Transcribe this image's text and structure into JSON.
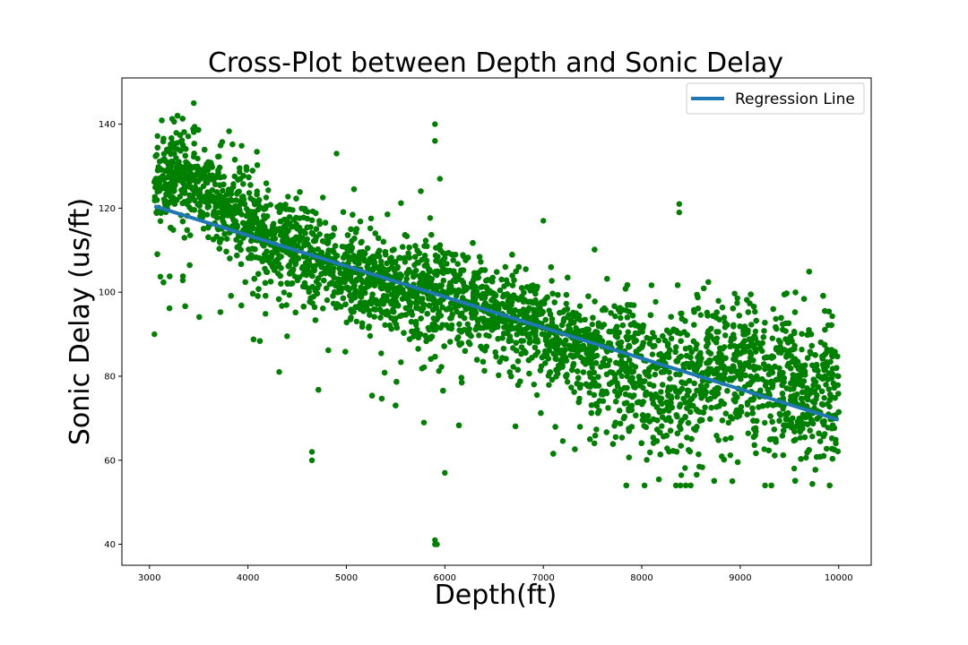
{
  "chart_data": {
    "type": "scatter",
    "title": "Cross-Plot between Depth and Sonic Delay",
    "xlabel": "Depth(ft)",
    "ylabel": "Sonic Delay (us/ft)",
    "xlim": [
      2720,
      10330
    ],
    "ylim": [
      35,
      151
    ],
    "x_ticks": [
      3000,
      4000,
      5000,
      6000,
      7000,
      8000,
      9000,
      10000
    ],
    "y_ticks": [
      40,
      60,
      80,
      100,
      120,
      140
    ],
    "grid": false,
    "legend": {
      "placement": "top-right",
      "entries": [
        "Regression Line"
      ]
    },
    "colors": {
      "scatter": "#008000",
      "regression": "#1f77b4"
    },
    "trend": [
      {
        "x": 3050,
        "y": 126
      },
      {
        "x": 3300,
        "y": 128
      },
      {
        "x": 3500,
        "y": 125
      },
      {
        "x": 3800,
        "y": 120
      },
      {
        "x": 4200,
        "y": 113
      },
      {
        "x": 4600,
        "y": 110
      },
      {
        "x": 5000,
        "y": 104
      },
      {
        "x": 5500,
        "y": 100
      },
      {
        "x": 6000,
        "y": 99
      },
      {
        "x": 6500,
        "y": 96
      },
      {
        "x": 7000,
        "y": 90
      },
      {
        "x": 7500,
        "y": 86
      },
      {
        "x": 8000,
        "y": 80
      },
      {
        "x": 8500,
        "y": 79
      },
      {
        "x": 9000,
        "y": 83
      },
      {
        "x": 9500,
        "y": 78
      },
      {
        "x": 10000,
        "y": 75
      }
    ],
    "outliers": [
      {
        "x": 3450,
        "y": 145
      },
      {
        "x": 5900,
        "y": 140
      },
      {
        "x": 5900,
        "y": 136
      },
      {
        "x": 5900,
        "y": 41
      },
      {
        "x": 5900,
        "y": 40
      },
      {
        "x": 5920,
        "y": 40
      },
      {
        "x": 4650,
        "y": 62
      },
      {
        "x": 4650,
        "y": 60
      },
      {
        "x": 6000,
        "y": 57
      },
      {
        "x": 8380,
        "y": 121
      },
      {
        "x": 8380,
        "y": 119
      },
      {
        "x": 3050,
        "y": 90
      },
      {
        "x": 4900,
        "y": 133
      },
      {
        "x": 5950,
        "y": 127
      },
      {
        "x": 7000,
        "y": 117
      }
    ],
    "series": [
      {
        "name": "Regression Line",
        "type": "line",
        "x": [
          3050,
          10000
        ],
        "y": [
          120.5,
          69.6
        ]
      }
    ]
  }
}
